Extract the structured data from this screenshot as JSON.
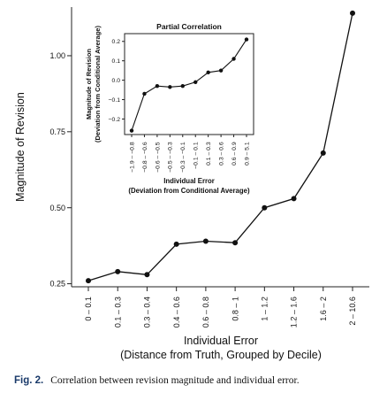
{
  "chart_data": [
    {
      "type": "line",
      "categories": [
        "0 – 0.1",
        "0.1 – 0.3",
        "0.3 – 0.4",
        "0.4 – 0.6",
        "0.6 – 0.8",
        "0.8 – 1",
        "1 – 1.2",
        "1.2 – 1.6",
        "1.6 – 2",
        "2 – 10.6"
      ],
      "values": [
        0.26,
        0.29,
        0.28,
        0.38,
        0.39,
        0.385,
        0.5,
        0.53,
        0.68,
        1.14
      ],
      "ylim": [
        0.24,
        1.16
      ],
      "yticks": [
        0.25,
        0.5,
        0.75,
        1.0
      ],
      "ytick_labels": [
        "0.25",
        "0.50",
        "0.75",
        "1.00"
      ],
      "ylabel": "Magnitude of Revision",
      "xlabel": "Individual Error",
      "xlabel_sub": "(Distance from Truth, Grouped by Decile)",
      "grid": false
    },
    {
      "type": "line",
      "title": "Partial Correlation",
      "categories": [
        "−1.9 – −0.8",
        "−0.8 – −0.6",
        "−0.6 – −0.5",
        "−0.5 – −0.3",
        "−0.3 – −0.1",
        "−0.1 – 0.1",
        "0.1 – 0.3",
        "0.3 – 0.6",
        "0.6 – 0.9",
        "0.9 – 5.1"
      ],
      "values": [
        -0.26,
        -0.07,
        -0.03,
        -0.035,
        -0.03,
        -0.01,
        0.04,
        0.05,
        0.11,
        0.21
      ],
      "ylim": [
        -0.28,
        0.24
      ],
      "yticks": [
        -0.2,
        -0.1,
        0.0,
        0.1,
        0.2
      ],
      "ytick_labels": [
        "−0.2",
        "−0.1",
        "0.0",
        "0.1",
        "0.2"
      ],
      "ylabel": "Magnitude of Revision",
      "ylabel_sub": "(Deviation from Conditional Average)",
      "xlabel": "Individual Error",
      "xlabel_sub": "(Deviation from Conditional Average)",
      "grid": false
    }
  ],
  "caption": {
    "label": "Fig. 2.",
    "text": "Correlation between revision magnitude and individual error."
  }
}
